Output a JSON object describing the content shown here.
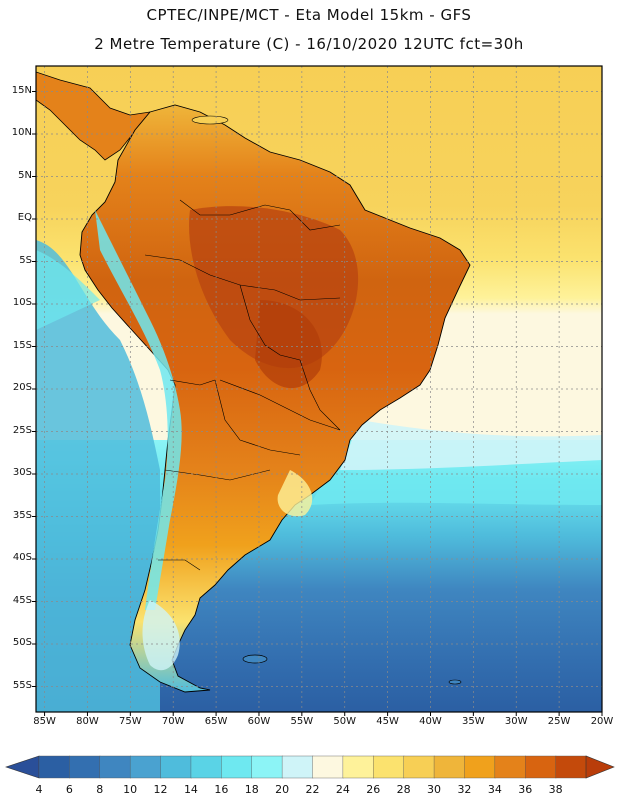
{
  "header": {
    "title": "CPTEC/INPE/MCT -  Eta Model 15km - GFS",
    "subtitle": "2 Metre Temperature (C) - 16/10/2020 12UTC fct=30h"
  },
  "map": {
    "lat_labels": [
      "15N",
      "10N",
      "5N",
      "EQ",
      "5S",
      "10S",
      "15S",
      "20S",
      "25S",
      "30S",
      "35S",
      "40S",
      "45S",
      "50S",
      "55S"
    ],
    "lon_labels": [
      "85W",
      "80W",
      "75W",
      "70W",
      "65W",
      "60W",
      "55W",
      "50W",
      "45W",
      "40W",
      "35W",
      "30W",
      "25W",
      "20W"
    ],
    "lat_range": [
      18,
      -58
    ],
    "lon_range": [
      -86,
      -20
    ]
  },
  "colorbar": {
    "labels": [
      "4",
      "6",
      "8",
      "10",
      "12",
      "14",
      "16",
      "18",
      "20",
      "22",
      "24",
      "26",
      "28",
      "30",
      "32",
      "34",
      "36",
      "38"
    ],
    "colors": [
      "#2b5fa3",
      "#336fb0",
      "#3f86c0",
      "#4aa2d0",
      "#4fbcdc",
      "#5ad3e6",
      "#6ee8f0",
      "#8cf4f6",
      "#cff4f8",
      "#fdf8e0",
      "#fef29a",
      "#fbe26e",
      "#f7cf55",
      "#efb53a",
      "#f0a11c",
      "#e4821a",
      "#d86410",
      "#c44a0b"
    ],
    "low_color": "#2a4f99",
    "high_color": "#b93d0a"
  }
}
